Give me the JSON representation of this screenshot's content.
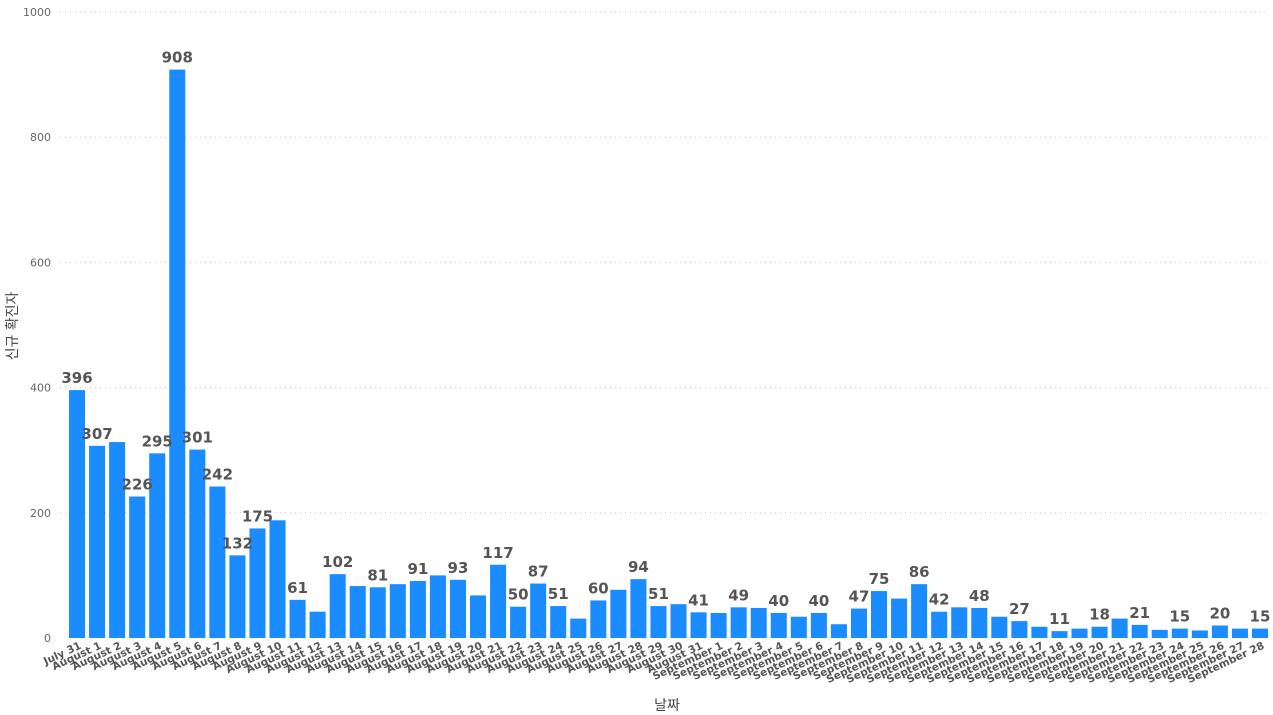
{
  "chart_data": {
    "type": "bar",
    "title": "",
    "xlabel": "날짜",
    "ylabel": "신규 확진자",
    "ylim": [
      0,
      1000
    ],
    "yticks": [
      0,
      200,
      400,
      600,
      800,
      1000
    ],
    "grid": true,
    "bar_color": "#1a8cff",
    "categories": [
      "July 31",
      "August 1",
      "August 2",
      "August 3",
      "August 4",
      "August 5",
      "August 6",
      "August 7",
      "August 8",
      "August 9",
      "August 10",
      "August 11",
      "August 12",
      "August 13",
      "August 14",
      "August 15",
      "August 16",
      "August 17",
      "August 18",
      "August 19",
      "August 20",
      "August 21",
      "August 22",
      "August 23",
      "August 24",
      "August 25",
      "August 26",
      "August 27",
      "August 28",
      "August 29",
      "August 30",
      "August 31",
      "September 1",
      "September 2",
      "September 3",
      "September 4",
      "September 5",
      "September 6",
      "September 7",
      "September 8",
      "September 9",
      "September 10",
      "September 11",
      "September 12",
      "September 13",
      "September 14",
      "September 15",
      "September 16",
      "September 17",
      "September 18",
      "September 19",
      "September 20",
      "September 21",
      "September 22",
      "September 23",
      "September 24",
      "September 25",
      "September 26",
      "September 27",
      "September 28"
    ],
    "values": [
      396,
      307,
      313,
      226,
      295,
      908,
      301,
      242,
      132,
      175,
      188,
      61,
      42,
      102,
      83,
      81,
      86,
      91,
      100,
      93,
      68,
      117,
      50,
      87,
      51,
      31,
      60,
      77,
      94,
      51,
      54,
      41,
      40,
      49,
      48,
      40,
      34,
      40,
      22,
      47,
      75,
      63,
      86,
      42,
      49,
      48,
      34,
      27,
      18,
      11,
      15,
      18,
      31,
      21,
      13,
      15,
      12,
      20,
      15,
      15
    ],
    "data_labels": [
      "396",
      "307",
      "",
      "226",
      "295",
      "908",
      "301",
      "242",
      "132",
      "175",
      "",
      "61",
      "",
      "102",
      "",
      "81",
      "",
      "91",
      "",
      "93",
      "",
      "117",
      "50",
      "87",
      "51",
      "",
      "60",
      "",
      "94",
      "51",
      "",
      "41",
      "",
      "49",
      "",
      "40",
      "",
      "40",
      "",
      "47",
      "75",
      "",
      "86",
      "42",
      "",
      "48",
      "",
      "27",
      "",
      "11",
      "",
      "18",
      "",
      "21",
      "",
      "15",
      "",
      "20",
      "",
      "15"
    ]
  }
}
